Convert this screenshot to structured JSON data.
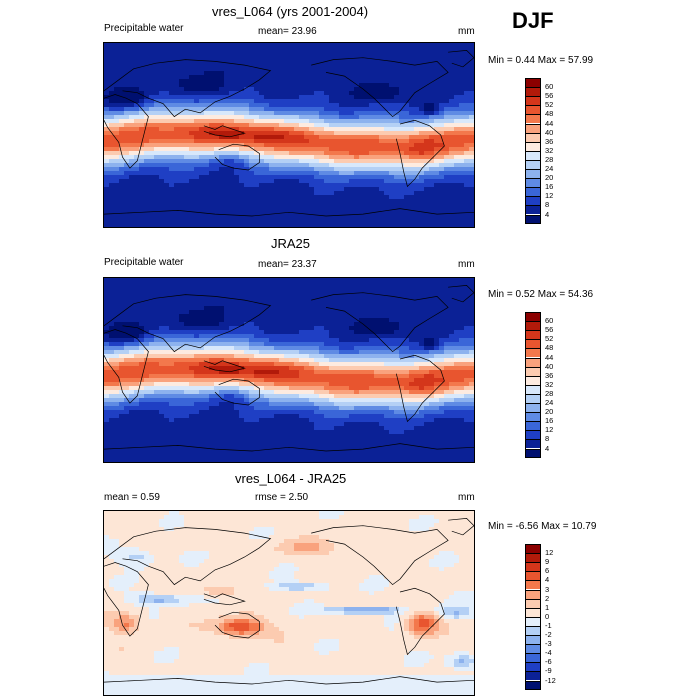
{
  "season": "DJF",
  "panels": [
    {
      "title": "vres_L064 (yrs 2001-2004)",
      "left_label": "Precipitable water",
      "mid_label": "mean=  23.96",
      "units": "mm",
      "minmax": "Min =   0.44 Max =  57.99",
      "colorbar": {
        "labels": [
          "60",
          "56",
          "52",
          "48",
          "44",
          "40",
          "36",
          "32",
          "28",
          "24",
          "20",
          "16",
          "12",
          "8",
          "4"
        ],
        "colors": [
          "#8b0000",
          "#b21a0a",
          "#d4361b",
          "#e8552f",
          "#f3784c",
          "#f9a27d",
          "#fccbb0",
          "#fdebe0",
          "#d8e8fb",
          "#b4d0f5",
          "#8db2ee",
          "#5f8be4",
          "#3a66d8",
          "#1f3fc4",
          "#0b2196",
          "#001070"
        ]
      },
      "field": "pw_model"
    },
    {
      "title": "JRA25",
      "left_label": "Precipitable water",
      "mid_label": "mean=  23.37",
      "units": "mm",
      "minmax": "Min =   0.52 Max =  54.36",
      "colorbar": {
        "labels": [
          "60",
          "56",
          "52",
          "48",
          "44",
          "40",
          "36",
          "32",
          "28",
          "24",
          "20",
          "16",
          "12",
          "8",
          "4"
        ],
        "colors": [
          "#8b0000",
          "#b21a0a",
          "#d4361b",
          "#e8552f",
          "#f3784c",
          "#f9a27d",
          "#fccbb0",
          "#fdebe0",
          "#d8e8fb",
          "#b4d0f5",
          "#8db2ee",
          "#5f8be4",
          "#3a66d8",
          "#1f3fc4",
          "#0b2196",
          "#001070"
        ]
      },
      "field": "pw_obs"
    },
    {
      "title": "vres_L064 - JRA25",
      "left_label": "mean =   0.59",
      "mid_label": "rmse =   2.50",
      "units": "mm",
      "minmax": "Min =  -6.56 Max =  10.79",
      "colorbar": {
        "labels": [
          "12",
          "9",
          "6",
          "4",
          "3",
          "2",
          "1",
          "0",
          "-1",
          "-2",
          "-3",
          "-4",
          "-6",
          "-9",
          "-12"
        ],
        "colors": [
          "#8b0000",
          "#b21a0a",
          "#d4361b",
          "#e8552f",
          "#f3784c",
          "#f9a27d",
          "#fccbb0",
          "#fde6d6",
          "#e4effb",
          "#b4d0f5",
          "#8db2ee",
          "#5f8be4",
          "#3a66d8",
          "#1f3fc4",
          "#0b2196",
          "#001070"
        ]
      },
      "field": "diff"
    }
  ]
}
